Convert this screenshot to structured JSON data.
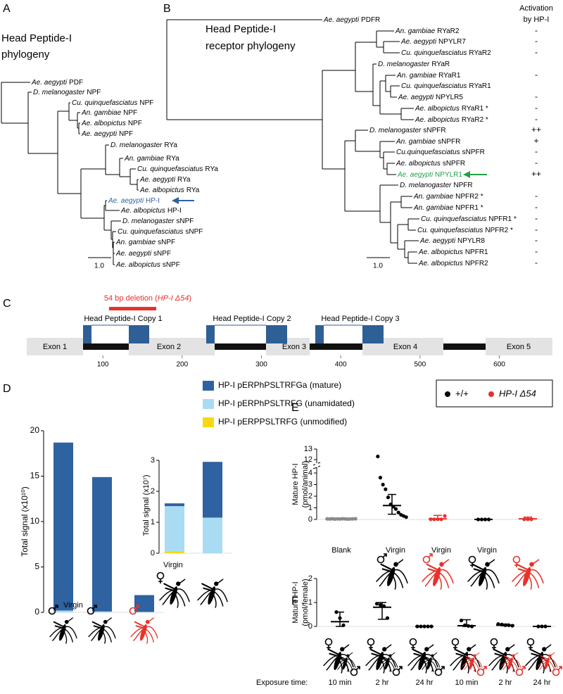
{
  "panels": {
    "A": {
      "letter": "A",
      "title": [
        "Head Peptide-I",
        "phylogeny"
      ],
      "title_color": "#2e62a0",
      "scale": "1.0",
      "leaves": [
        {
          "species": "Ae. aegypti",
          "gene": "PDF"
        },
        {
          "species": "D. melanogaster",
          "gene": "NPF"
        },
        {
          "species": "Cu. quinquefasciatus",
          "gene": "NPF"
        },
        {
          "species": "An. gambiae",
          "gene": "NPF"
        },
        {
          "species": "Ae. albopictus",
          "gene": "NPF"
        },
        {
          "species": "Ae. aegypti",
          "gene": "NPF"
        },
        {
          "species": "D. melanogaster",
          "gene": "RYa"
        },
        {
          "species": "An. gambiae",
          "gene": "RYa"
        },
        {
          "species": "Cu. quinquefasciatus",
          "gene": "RYa"
        },
        {
          "species": "Ae. aegypti",
          "gene": "RYa"
        },
        {
          "species": "Ae. albopictus",
          "gene": "RYa"
        },
        {
          "species": "Ae. aegypti",
          "gene": "HP-I",
          "color": "#2e62a0"
        },
        {
          "species": "Ae. albopictus",
          "gene": "HP-I"
        },
        {
          "species": "D. melanogaster",
          "gene": "sNPF"
        },
        {
          "species": "Cu. quinquefasciatus",
          "gene": "sNPF"
        },
        {
          "species": "An. gambiae",
          "gene": "sNPF"
        },
        {
          "species": "Ae. aegypti",
          "gene": "sNPF"
        },
        {
          "species": "Ae. albopictus",
          "gene": "sNPF"
        }
      ]
    },
    "B": {
      "letter": "B",
      "title": [
        "Head Peptide-I",
        "receptor phylogeny"
      ],
      "title_color": "#23a045",
      "scale": "1.0",
      "activation_header": [
        "Activation",
        "by HP-I"
      ],
      "activation_color": "#2e62a0",
      "leaves": [
        {
          "species": "Ae. aegypti",
          "gene": "PDFR"
        },
        {
          "species": "An. gambiae",
          "gene": "RYaR2",
          "activation": "-"
        },
        {
          "species": "Ae. aegypti",
          "gene": "NPYLR7",
          "activation": "-"
        },
        {
          "species": "Cu. quinquefasciatus",
          "gene": "RYaR2",
          "activation": "-"
        },
        {
          "species": "D. melanogaster",
          "gene": "RYaR"
        },
        {
          "species": "An. gambiae",
          "gene": "RYaR1",
          "activation": "-"
        },
        {
          "species": "Cu. quinquefasciatus",
          "gene": "RYaR1"
        },
        {
          "species": "Ae. aegypti",
          "gene": "NPYLR5",
          "activation": "-"
        },
        {
          "species": "Ae. albopictus",
          "gene": "RYaR1 *",
          "activation": "-"
        },
        {
          "species": "Ae. albopictus",
          "gene": "RYaR2 *",
          "activation": "-"
        },
        {
          "species": "D. melanogaster",
          "gene": "sNPFR",
          "activation": "++"
        },
        {
          "species": "An. gambiae",
          "gene": "sNPFR",
          "activation": "+"
        },
        {
          "species": "Cu.quinquefasciatus",
          "gene": "sNPFR",
          "activation": "-"
        },
        {
          "species": "Ae. albopictus",
          "gene": "sNPFR",
          "activation": "-"
        },
        {
          "species": "Ae. aegypti",
          "gene": "NPYLR1",
          "activation": "++",
          "color": "#23a045"
        },
        {
          "species": "D. melanogaster",
          "gene": "NPFR"
        },
        {
          "species": "An. gambiae",
          "gene": "NPFR2 *",
          "activation": "-"
        },
        {
          "species": "An. gambiae",
          "gene": "NPFR1 *",
          "activation": "-"
        },
        {
          "species": "Cu. quinquefasciatus",
          "gene": "NPFR1 *",
          "activation": "-"
        },
        {
          "species": "Cu. quinquefasciatus",
          "gene": "NPFR2 *",
          "activation": "-"
        },
        {
          "species": "Ae. aegypti",
          "gene": "NPYLR8",
          "activation": "-"
        },
        {
          "species": "Ae. albopictus",
          "gene": "NPFR1",
          "activation": "-"
        },
        {
          "species": "Ae. albopictus",
          "gene": "NPFR2",
          "activation": "-"
        }
      ]
    },
    "C": {
      "letter": "C",
      "deletion": {
        "prefix": "54 bp deletion (",
        "allele": "HP-I Δ54",
        "suffix": ")"
      },
      "copies": [
        "Head Peptide-I Copy 1",
        "Head Peptide-I Copy 2",
        "Head Peptide-I Copy 3"
      ],
      "exons": [
        "Exon 1",
        "Exon 2",
        "Exon 3",
        "Exon 4",
        "Exon 5"
      ],
      "xlim": [
        4,
        667
      ],
      "xticks": [
        100,
        200,
        300,
        400,
        500,
        600
      ]
    }
  },
  "chart_data": [
    {
      "type": "bar",
      "panel": "D",
      "stacked": true,
      "ylabel": "Total signal (x10¹⁰)",
      "categories": [
        "Virgin",
        null,
        null
      ],
      "category_colors": [
        "#000000",
        "#000000",
        "#e8312a"
      ],
      "series": [
        {
          "name": "HP-I pERPhPSLTRFGa (mature)",
          "color": "#2e62a0",
          "values": [
            18.5,
            14.8,
            1.85
          ]
        },
        {
          "name": "HP-I pERPhPSLTRFG (unamidated)",
          "color": "#a9dcf3",
          "values": [
            0.2,
            0.1,
            0.05
          ]
        },
        {
          "name": "HP-I pERPPSLTRFG (unmodified)",
          "color": "#f7d812",
          "values": [
            0,
            0,
            0
          ]
        }
      ],
      "ylim": [
        0,
        20
      ],
      "yticks": [
        0,
        5,
        10,
        15,
        20
      ]
    },
    {
      "type": "bar",
      "stacked": true,
      "ylabel": "Total signal (x10⁷)",
      "categories": [
        "Virgin",
        null
      ],
      "category_colors": [
        "#000000",
        "#000000"
      ],
      "series": [
        {
          "color": "#2e62a0",
          "values": [
            0.09,
            1.8
          ]
        },
        {
          "color": "#a9dcf3",
          "values": [
            1.45,
            1.15
          ]
        },
        {
          "color": "#f7d812",
          "values": [
            0.07,
            0
          ]
        }
      ],
      "ylim": [
        0,
        3
      ],
      "yticks": [
        0,
        1,
        2,
        3
      ]
    },
    {
      "type": "strip",
      "panel": "E",
      "ylabel": [
        "Mature HP-I",
        "(pmol/animal)"
      ],
      "legend": [
        {
          "name": "+/+",
          "color": "#000000"
        },
        {
          "name": "HP-I Δ54",
          "color": "#e8312a",
          "italic": true
        }
      ],
      "categories": [
        "Blank",
        "Virgin",
        "Virgin",
        "Virgin",
        null
      ],
      "groups": [
        {
          "color": "#8a8a8a",
          "values": [
            0.05,
            0.04,
            0.06,
            0.03,
            0.05,
            0.04,
            0.06,
            0.05,
            0.03,
            0.04,
            0.05,
            0.06
          ]
        },
        {
          "color": "#000000",
          "values": [
            12.3,
            3.6,
            3.0,
            2.6,
            1.9,
            1.3,
            1.1,
            0.9,
            0.6,
            0.4,
            0.3,
            0.2
          ],
          "center": 1.2,
          "lower": 0.45,
          "upper": 2.15
        },
        {
          "color": "#e8312a",
          "values": [
            0.02,
            0.01,
            0.02,
            0.01,
            0.3
          ],
          "center": 0.05,
          "lower": 0,
          "upper": 0.35
        },
        {
          "color": "#000000",
          "values": [
            0,
            0,
            0,
            0
          ],
          "center": 0,
          "lower": 0,
          "upper": 0
        },
        {
          "color": "#e8312a",
          "values": [
            0.01,
            0.02,
            0.01
          ],
          "center": 0.05,
          "lower": 0,
          "upper": 0.2
        }
      ],
      "ylim": [
        0,
        13
      ],
      "axis_break": [
        4,
        12
      ],
      "yticks": [
        0,
        1,
        2,
        3,
        4,
        12,
        13
      ]
    },
    {
      "type": "strip",
      "panel": "F",
      "ylabel": [
        "Mature HP-I",
        "(pmol/female)"
      ],
      "xlabel": "Exposure time:",
      "categories": [
        "10 min",
        "2 hr",
        "24 hr",
        "10 min",
        "2 hr",
        "24 hr"
      ],
      "partner_colors": [
        "#000000",
        "#000000",
        "#000000",
        "#e8312a",
        "#e8312a",
        "#e8312a"
      ],
      "groups": [
        {
          "color": "#000000",
          "values": [
            0.6,
            0.35,
            0.05
          ],
          "center": 0.2,
          "lower": 0,
          "upper": 0.6
        },
        {
          "color": "#000000",
          "values": [
            0.95,
            0.9,
            0.85,
            0.35
          ],
          "center": 0.8,
          "lower": 0.3,
          "upper": 1.0
        },
        {
          "color": "#000000",
          "values": [
            0,
            0,
            0,
            0,
            0
          ],
          "center": 0,
          "lower": 0,
          "upper": 0
        },
        {
          "color": "#000000",
          "values": [
            0.25,
            0.05,
            0.02,
            0
          ],
          "center": 0.03,
          "lower": 0,
          "upper": 0.28
        },
        {
          "color": "#000000",
          "values": [
            0.1,
            0.08,
            0.05,
            0.05,
            0.03
          ],
          "center": 0.05,
          "lower": 0.03,
          "upper": 0.1
        },
        {
          "color": "#000000",
          "values": [
            0,
            0,
            0
          ],
          "center": 0,
          "lower": 0,
          "upper": 0
        }
      ],
      "ylim": [
        0,
        2
      ],
      "yticks": [
        0,
        1,
        2
      ]
    }
  ]
}
